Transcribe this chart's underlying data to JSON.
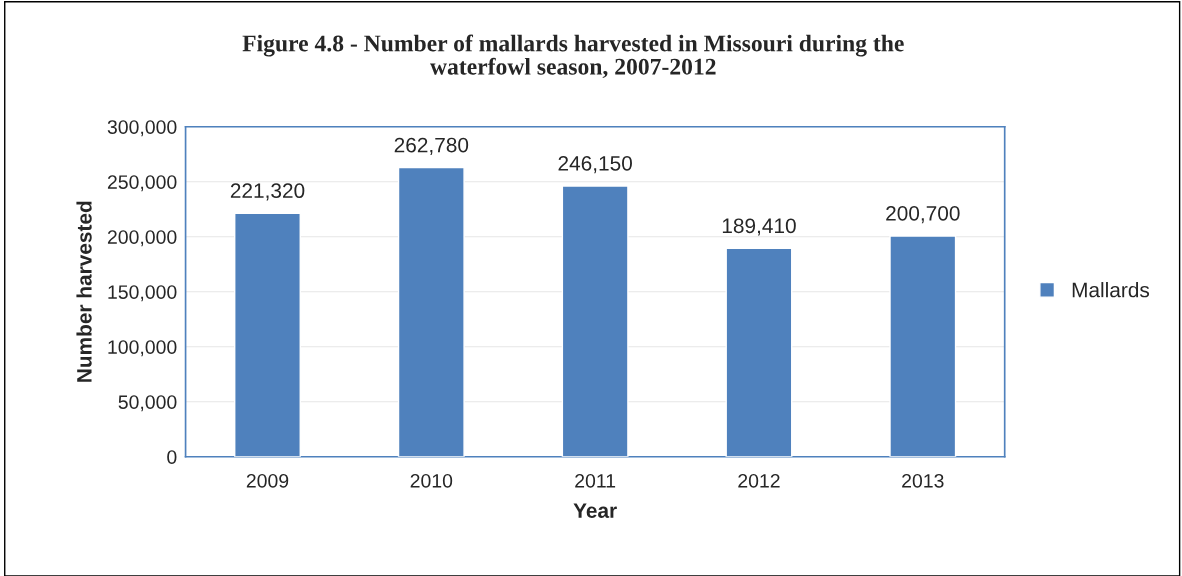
{
  "chart_data": {
    "type": "bar",
    "title": "Figure 4.8 - Number of mallards harvested in Missouri during the\nwaterfowl season, 2007-2012",
    "xlabel": "Year",
    "ylabel": "Number harvested",
    "categories": [
      "2009",
      "2010",
      "2011",
      "2012",
      "2013"
    ],
    "series": [
      {
        "name": "Mallards",
        "color": "#4f81bd",
        "values": [
          221320,
          262780,
          246150,
          189410,
          200700
        ],
        "value_labels": [
          "221,320",
          "262,780",
          "246,150",
          "189,410",
          "200,700"
        ]
      }
    ],
    "ylim": [
      0,
      300000
    ],
    "yticks": [
      {
        "value": 0,
        "label": "0"
      },
      {
        "value": 50000,
        "label": "50,000"
      },
      {
        "value": 100000,
        "label": "100,000"
      },
      {
        "value": 150000,
        "label": "150,000"
      },
      {
        "value": 200000,
        "label": "200,000"
      },
      {
        "value": 250000,
        "label": "250,000"
      },
      {
        "value": 300000,
        "label": "300,000"
      }
    ],
    "grid": "y",
    "legend": "right"
  }
}
